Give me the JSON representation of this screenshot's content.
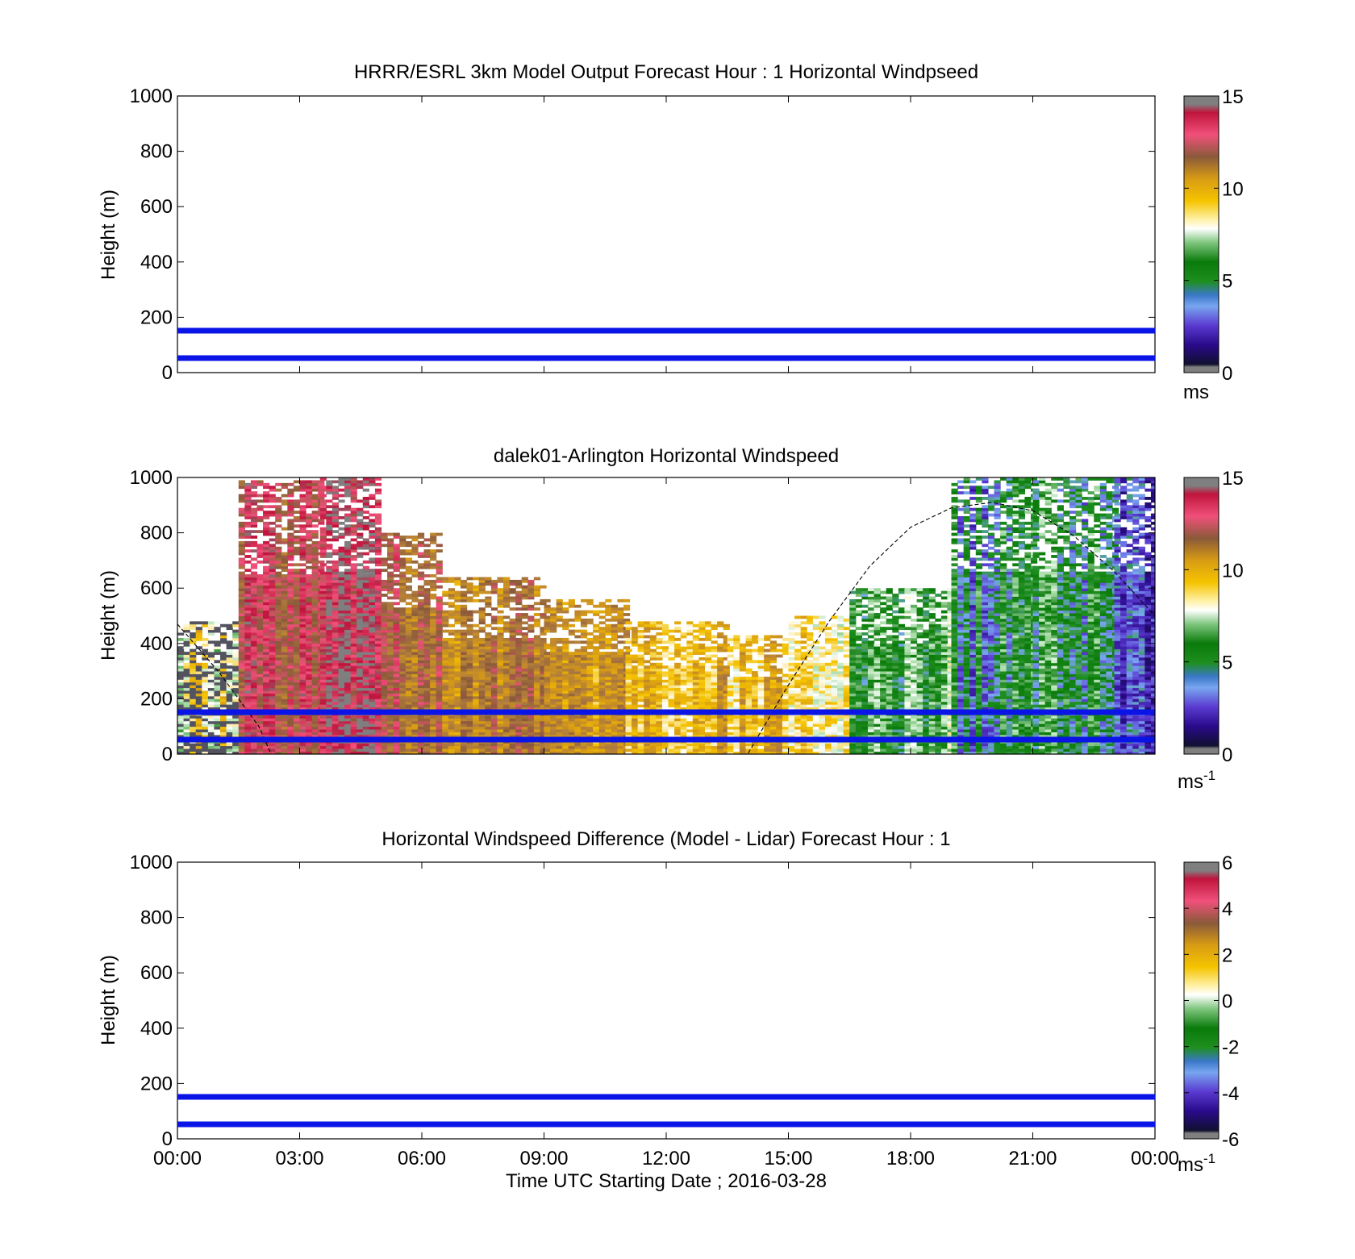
{
  "panels": [
    {
      "title": "HRRR/ESRL 3km Model Output   Forecast Hour : 1 Horizontal Windpseed",
      "ylabel": "Height (m)",
      "colorbar": {
        "ticks": [
          "0",
          "5",
          "10",
          "15"
        ],
        "unit": "ms"
      }
    },
    {
      "title": "dalek01-Arlington  Horizontal Windspeed",
      "ylabel": "Height (m)",
      "colorbar": {
        "ticks": [
          "0",
          "5",
          "10",
          "15"
        ],
        "unit": "ms",
        "unit_sup": "-1"
      }
    },
    {
      "title": "Horizontal Windspeed Difference (Model - Lidar) Forecast Hour : 1",
      "ylabel": "Height (m)",
      "xlabel": "Time UTC  Starting Date ; 2016-03-28",
      "colorbar": {
        "ticks": [
          "-6",
          "-4",
          "-2",
          "0",
          "2",
          "4",
          "6"
        ],
        "unit": "ms",
        "unit_sup": "-1"
      }
    }
  ],
  "chart_data": [
    {
      "type": "heatmap",
      "title": "HRRR/ESRL 3km Model Output   Forecast Hour : 1 Horizontal Windpseed",
      "ylabel": "Height (m)",
      "xlim": [
        0,
        24
      ],
      "ylim": [
        0,
        1000
      ],
      "yticks": [
        "0",
        "200",
        "400",
        "600",
        "800",
        "1000"
      ],
      "reference_lines": [
        {
          "height": 150,
          "color": "#0a14e6"
        },
        {
          "height": 50,
          "color": "#0a14e6"
        }
      ],
      "colorbar": {
        "range": [
          0,
          15
        ],
        "unit": "ms"
      },
      "cells": []
    },
    {
      "type": "heatmap",
      "title": "dalek01-Arlington  Horizontal Windspeed",
      "ylabel": "Height (m)",
      "xlim": [
        0,
        24
      ],
      "ylim": [
        0,
        1000
      ],
      "yticks": [
        "0",
        "200",
        "400",
        "600",
        "800",
        "1000"
      ],
      "reference_lines": [
        {
          "height": 150,
          "color": "#0a14e6"
        },
        {
          "height": 50,
          "color": "#0a14e6"
        }
      ],
      "colorbar": {
        "range": [
          0,
          15
        ],
        "unit": "ms-1"
      },
      "cloud_base_profile": [
        [
          0,
          470
        ],
        [
          1,
          300
        ],
        [
          2,
          100
        ],
        [
          2.3,
          0
        ],
        [
          14,
          0
        ],
        [
          15,
          250
        ],
        [
          16,
          480
        ],
        [
          17,
          680
        ],
        [
          18,
          820
        ],
        [
          19,
          890
        ],
        [
          20,
          910
        ],
        [
          21,
          880
        ],
        [
          22,
          790
        ],
        [
          23,
          660
        ],
        [
          24,
          500
        ]
      ],
      "windspeed_profile": [
        {
          "hours": [
            0.0,
            1.5
          ],
          "speed_mps": 8,
          "top_m": 480
        },
        {
          "hours": [
            1.5,
            3.5
          ],
          "speed_mps": 13,
          "top_m": 990
        },
        {
          "hours": [
            3.5,
            5.0
          ],
          "speed_mps": 14,
          "top_m": 1000
        },
        {
          "hours": [
            5.0,
            6.5
          ],
          "speed_mps": 12,
          "top_m": 800
        },
        {
          "hours": [
            6.5,
            9.0
          ],
          "speed_mps": 11,
          "top_m": 640
        },
        {
          "hours": [
            9.0,
            11.0
          ],
          "speed_mps": 10.5,
          "top_m": 560
        },
        {
          "hours": [
            11.0,
            13.5
          ],
          "speed_mps": 9.5,
          "top_m": 480
        },
        {
          "hours": [
            13.5,
            15.0
          ],
          "speed_mps": 9,
          "top_m": 430
        },
        {
          "hours": [
            15.0,
            16.5
          ],
          "speed_mps": 8,
          "top_m": 500
        },
        {
          "hours": [
            16.5,
            19.0
          ],
          "speed_mps": 6,
          "top_m": 600
        },
        {
          "hours": [
            19.0,
            21.0
          ],
          "speed_mps": 4.5,
          "top_m": 1000
        },
        {
          "hours": [
            21.0,
            23.0
          ],
          "speed_mps": 5,
          "top_m": 1000
        },
        {
          "hours": [
            23.0,
            24.0
          ],
          "speed_mps": 2.5,
          "top_m": 1000
        }
      ]
    },
    {
      "type": "heatmap",
      "title": "Horizontal Windspeed Difference (Model - Lidar) Forecast Hour : 1",
      "xlabel": "Time UTC  Starting Date ; 2016-03-28",
      "ylabel": "Height (m)",
      "xlim": [
        0,
        24
      ],
      "ylim": [
        0,
        1000
      ],
      "xticks": [
        "00:00",
        "03:00",
        "06:00",
        "09:00",
        "12:00",
        "15:00",
        "18:00",
        "21:00",
        "00:00"
      ],
      "yticks": [
        "0",
        "200",
        "400",
        "600",
        "800",
        "1000"
      ],
      "reference_lines": [
        {
          "height": 150,
          "color": "#0a14e6"
        },
        {
          "height": 50,
          "color": "#0a14e6"
        }
      ],
      "colorbar": {
        "range": [
          -6,
          6
        ],
        "unit": "ms-1"
      },
      "cells": []
    }
  ],
  "colors": {
    "reference_line": "#0a14e6",
    "colormap": [
      "#7f7f7f",
      "#101030",
      "#2a0a8a",
      "#5a3ad0",
      "#78a6f0",
      "#1e8f1e",
      "#0a7a0a",
      "#a8dca8",
      "#ffffff",
      "#f5c400",
      "#d89c14",
      "#b07c3c",
      "#8a5a3a",
      "#f0507a",
      "#c0143c",
      "#7f7f7f"
    ]
  }
}
